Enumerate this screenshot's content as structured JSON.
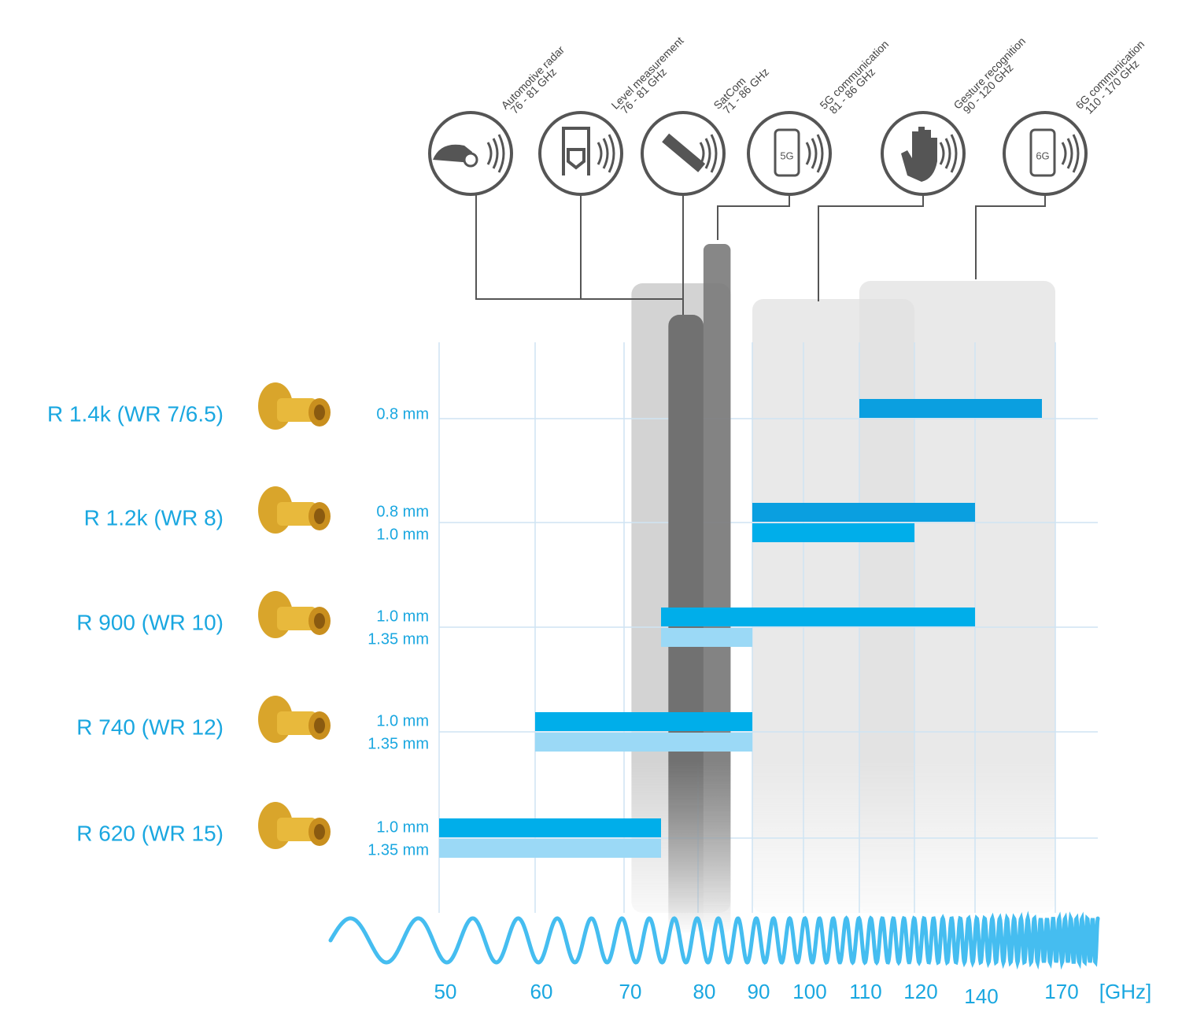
{
  "chart_data": {
    "type": "range_bar",
    "xlabel": "[GHz]",
    "xlim": [
      50,
      170
    ],
    "xticks": [
      50,
      60,
      70,
      80,
      90,
      100,
      110,
      120,
      140,
      170
    ],
    "grid": true,
    "rows": [
      {
        "name": "R 1.4k (WR 7/6.5)",
        "bars": [
          {
            "label": "0.8 mm",
            "range": [
              110,
              165
            ],
            "color": "#0a9fe0"
          }
        ]
      },
      {
        "name": "R 1.2k (WR 8)",
        "bars": [
          {
            "label": "0.8 mm",
            "range": [
              90,
              140
            ],
            "color": "#0a9fe0"
          },
          {
            "label": "1.0 mm",
            "range": [
              90,
              120
            ],
            "color": "#00aeea"
          }
        ]
      },
      {
        "name": "R 900 (WR 10)",
        "bars": [
          {
            "label": "1.0 mm",
            "range": [
              75,
              140
            ],
            "color": "#00aeea"
          },
          {
            "label": "1.35 mm",
            "range": [
              75,
              90
            ],
            "color": "#9bd9f6"
          }
        ]
      },
      {
        "name": "R 740 (WR 12)",
        "bars": [
          {
            "label": "1.0 mm",
            "range": [
              60,
              90
            ],
            "color": "#00aeea"
          },
          {
            "label": "1.35 mm",
            "range": [
              60,
              90
            ],
            "color": "#9bd9f6"
          }
        ]
      },
      {
        "name": "R 620 (WR 15)",
        "bars": [
          {
            "label": "1.0 mm",
            "range": [
              50,
              75
            ],
            "color": "#00aeea"
          },
          {
            "label": "1.35 mm",
            "range": [
              50,
              75
            ],
            "color": "#9bd9f6"
          }
        ]
      }
    ],
    "applications": [
      {
        "name": "Automotive radar",
        "range_label": "76 - 81 GHz",
        "range": [
          76,
          81
        ],
        "color": "#707070"
      },
      {
        "name": "Level measurement",
        "range_label": "76 - 81 GHz",
        "range": [
          76,
          81
        ],
        "color": "#707070"
      },
      {
        "name": "SatCom",
        "range_label": "71 - 86 GHz",
        "range": [
          71,
          86
        ],
        "color": "#c4c4c4"
      },
      {
        "name": "5G communication",
        "range_label": "81 - 86 GHz",
        "range": [
          81,
          86
        ],
        "color": "#7a7a7a",
        "icon_label": "5G"
      },
      {
        "name": "Gesture recognition",
        "range_label": "90 - 120 GHz",
        "range": [
          90,
          120
        ],
        "color": "#e2e2e2"
      },
      {
        "name": "6G communication",
        "range_label": "110 - 170 GHz",
        "range": [
          110,
          170
        ],
        "color": "#e2e2e2",
        "icon_label": "6G"
      }
    ]
  }
}
